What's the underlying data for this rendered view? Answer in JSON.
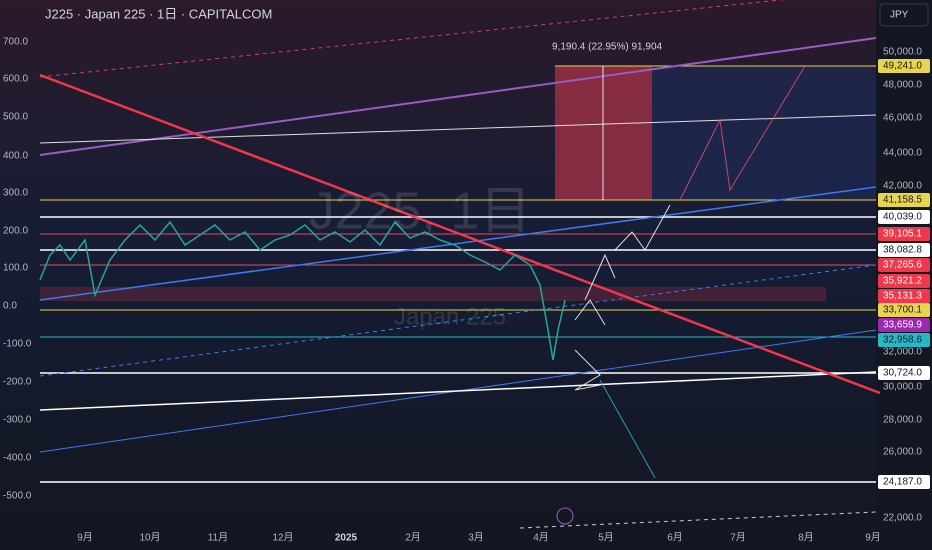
{
  "header": {
    "title": "J225 · Japan 225 · 1日 · CAPITALCOM",
    "currency": "JPY"
  },
  "watermark": {
    "symbol": "J225, 1日",
    "name": "Japan 225"
  },
  "annotation": "9,190.4 (22.95%) 91,904",
  "left_axis": [
    "700.0",
    "600.0",
    "500.0",
    "400.0",
    "300.0",
    "200.0",
    "100.0",
    "0.0",
    "-100.0",
    "-200.0",
    "-300.0",
    "-400.0",
    "-500.0"
  ],
  "right_axis": [
    "50,000.0",
    "48,000.0",
    "46,000.0",
    "44,000.0",
    "42,000.0",
    "32,000.0",
    "30,000.0",
    "28,000.0",
    "26,000.0",
    "22,000.0"
  ],
  "price_labels": [
    "49,241.0",
    "41,158.5",
    "40,039.0",
    "39,105.1",
    "38,082.8",
    "37,265.6",
    "35,921.2",
    "35,131.3",
    "33,700.1",
    "33,659.9",
    "32,958.6",
    "30,724.0",
    "24,187.0"
  ],
  "time_axis": [
    "9月",
    "10月",
    "11月",
    "12月",
    "2025",
    "2月",
    "3月",
    "4月",
    "5月",
    "6月",
    "7月",
    "8月",
    "9月"
  ]
}
